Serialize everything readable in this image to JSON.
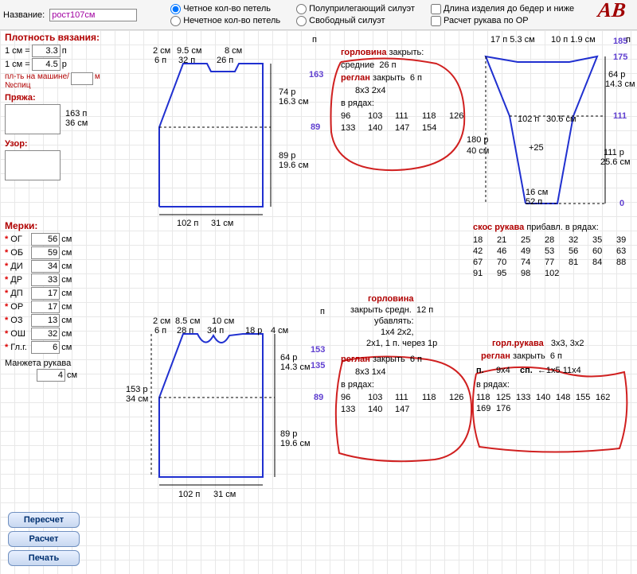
{
  "topbar": {
    "title_label": "Название:",
    "title_value": "рост107см",
    "radio_even": "Четное кол-во петель",
    "radio_odd": "Нечетное кол-во петель",
    "radio_semi": "Полуприлегающий силуэт",
    "radio_free": "Свободный силуэт",
    "chk_len": "Длина изделия до бедер и ниже",
    "chk_sleeve": "Расчет рукава по ОР"
  },
  "density": {
    "title": "Плотность вязания:",
    "row1_lhs": "1 см =",
    "row1_val": "3.3",
    "row1_unit": "п",
    "row2_lhs": "1 см =",
    "row2_val": "4.5",
    "row2_unit": "р",
    "machine_label": "пл-ть на машине/\n№спиц",
    "machine_unit": "м",
    "yarn_label": "Пряжа:",
    "side_p": "163 п",
    "side_cm": "36 см",
    "pattern_label": "Узор:"
  },
  "meas": {
    "title": "Мерки:",
    "rows": [
      {
        "label": "ОГ",
        "val": "56",
        "unit": "см"
      },
      {
        "label": "ОБ",
        "val": "59",
        "unit": "см"
      },
      {
        "label": "ДИ",
        "val": "34",
        "unit": "см"
      },
      {
        "label": "ДР",
        "val": "33",
        "unit": "см"
      },
      {
        "label": "ДП",
        "val": "17",
        "unit": "см"
      },
      {
        "label": "ОР",
        "val": "17",
        "unit": "см"
      },
      {
        "label": "ОЗ",
        "val": "13",
        "unit": "см"
      },
      {
        "label": "ОШ",
        "val": "32",
        "unit": "см"
      },
      {
        "label": "Гл.г.",
        "val": "6",
        "unit": "см"
      }
    ],
    "cuff_label": "Манжета рукава",
    "cuff_val": "4",
    "cuff_unit": "см"
  },
  "buttons": {
    "recalc": "Пересчет",
    "calc": "Расчет",
    "print": "Печать"
  },
  "back": {
    "top_dims": {
      "a": "2 см",
      "b": "9.5 см",
      "c": "8 см"
    },
    "top_st": {
      "a": "6 п",
      "b": "32 п",
      "c": "26 п"
    },
    "h1": "74 р",
    "h1cm": "16.3 см",
    "h2": "89 р",
    "h2cm": "19.6 см",
    "bottom": "102 п",
    "bottom_cm": "31 см",
    "side_163": "163",
    "side_89": "89"
  },
  "neckline_back": {
    "title": "горловина",
    "close_label": "закрыть:",
    "mid_label": "средние",
    "mid_val": "26 п",
    "raglan_label": "реглан",
    "raglan_close": "закрыть",
    "raglan_val": "6 п",
    "pairs": "8x3   2x4",
    "rows_label": "в рядах:",
    "rows_vals": [
      "96",
      "103",
      "111",
      "118",
      "126",
      "133",
      "140",
      "147",
      "154"
    ]
  },
  "sleeve": {
    "top": "17 п 5.3 см",
    "top2": "10 п 1.9 см",
    "right_185": "185",
    "right_175": "175",
    "h64": "64 р",
    "h143": "14.3 см",
    "right_111": "111",
    "mid_102": "102 п",
    "mid_306": "30.6 см",
    "plus25": "+25",
    "left_180": "180 р",
    "left_40": "40 см",
    "bot_16": "16 см",
    "bot_52": "52 п",
    "h111": "111 р",
    "h256": "25.6 см",
    "right_0": "0",
    "bevel_title": "скос рукава",
    "bevel_sub": "прибавл. в рядах:",
    "bevel_vals": [
      "18",
      "21",
      "25",
      "28",
      "32",
      "35",
      "39",
      "42",
      "46",
      "49",
      "53",
      "56",
      "60",
      "63",
      "67",
      "70",
      "74",
      "77",
      "81",
      "84",
      "88",
      "91",
      "95",
      "98",
      "102"
    ]
  },
  "front": {
    "top_dims": {
      "a": "2 см",
      "b": "8.5 см",
      "c": "10 см"
    },
    "top_st": {
      "a": "6 п",
      "b": "28 п",
      "c": "34 п",
      "d": "18 р",
      "e": "4 см"
    },
    "h64": "64 р",
    "h143": "14.3 см",
    "h89": "89 р",
    "h196": "19.6 см",
    "side_153": "153 р",
    "side_34": "34 см",
    "bottom": "102 п",
    "bottom_cm": "31 см",
    "r_153": "153",
    "r_135": "135",
    "r_89": "89"
  },
  "neckline_front": {
    "title": "горловина",
    "mid": "закрыть средн.",
    "mid_val": "12 п",
    "dec": "убавлять:",
    "dec_pairs": "1x4 2x2,",
    "dec_pairs2": "2x1, 1 п. через 1р",
    "raglan_label": "реглан",
    "raglan_close": "закрыть",
    "raglan_val": "6 п",
    "pairs": "8x3   1x4",
    "rows_label": "в рядах:",
    "rows_vals": [
      "96",
      "103",
      "111",
      "118",
      "126",
      "133",
      "140",
      "147"
    ]
  },
  "sleeve_neck": {
    "title": "горл.рукава",
    "title_pairs": "3x3, 3x2",
    "raglan_label": "реглан",
    "raglan_close": "закрыть",
    "raglan_val": "6 п",
    "p_label": "п.",
    "p_val": "9x4",
    "sp_label": "сп.",
    "sp_val": "←1x5 11x4",
    "rows_label": "в рядах:",
    "rows_vals": [
      "118",
      "125",
      "133",
      "140",
      "148",
      "155",
      "162",
      "169",
      "176"
    ]
  },
  "marks": {
    "p": "п",
    "r": "р"
  },
  "logo": "АВ"
}
